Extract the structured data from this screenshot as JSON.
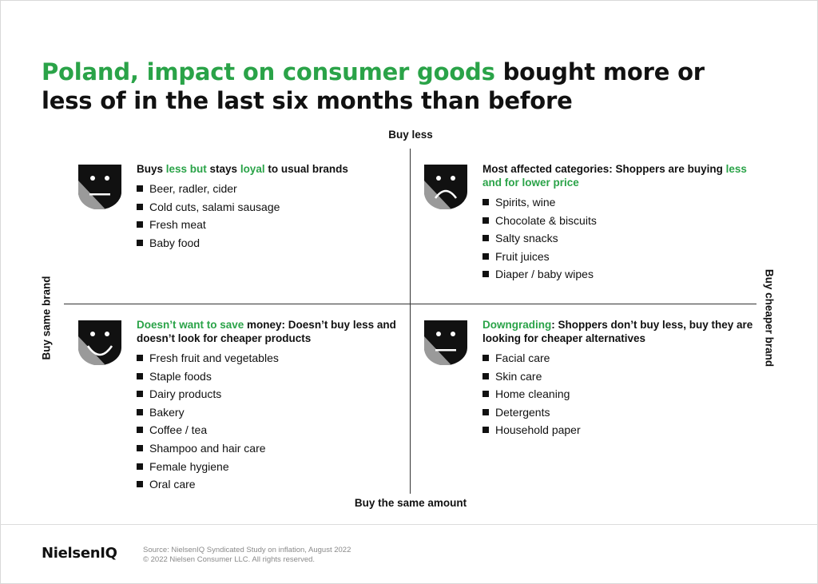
{
  "title": {
    "green": "Poland, impact on consumer goods",
    "rest": " bought more or less of in the last six months than before"
  },
  "axes": {
    "top": "Buy less",
    "bottom": "Buy the same amount",
    "left": "Buy same brand",
    "right": "Buy cheaper brand"
  },
  "quadrants": {
    "top_left": {
      "face": "neutral-face-icon",
      "heading": [
        {
          "text": "Buys ",
          "green": false
        },
        {
          "text": "less but",
          "green": true
        },
        {
          "text": " stays ",
          "green": false
        },
        {
          "text": "loyal",
          "green": true
        },
        {
          "text": " to usual brands",
          "green": false
        }
      ],
      "items": [
        "Beer, radler, cider",
        "Cold cuts, salami sausage",
        "Fresh meat",
        "Baby food"
      ]
    },
    "top_right": {
      "face": "sad-face-icon",
      "heading": [
        {
          "text": "Most affected categories: Shoppers are buying ",
          "green": false
        },
        {
          "text": "less and for lower price",
          "green": true
        }
      ],
      "items": [
        "Spirits, wine",
        "Chocolate & biscuits",
        "Salty snacks",
        "Fruit juices",
        "Diaper / baby wipes"
      ]
    },
    "bottom_left": {
      "face": "happy-face-icon",
      "heading": [
        {
          "text": "Doesn’t want to save",
          "green": true
        },
        {
          "text": " money: Doesn’t buy less and doesn’t look for cheaper products",
          "green": false
        }
      ],
      "items": [
        "Fresh fruit and vegetables",
        "Staple foods",
        "Dairy products",
        "Bakery",
        "Coffee / tea",
        "Shampoo and hair care",
        "Female hygiene",
        "Oral care"
      ]
    },
    "bottom_right": {
      "face": "neutral-face-icon",
      "heading": [
        {
          "text": "Downgrading",
          "green": true
        },
        {
          "text": ": Shoppers don’t buy less, buy they are looking for cheaper alternatives",
          "green": false
        }
      ],
      "items": [
        "Facial care",
        "Skin care",
        "Home cleaning",
        "Detergents",
        "Household paper"
      ]
    }
  },
  "footer": {
    "logo": "NielsenIQ",
    "source_line1": "Source: NielsenIQ Syndicated Study on inflation, August 2022",
    "source_line2": "© 2022 Nielsen Consumer LLC. All rights reserved."
  },
  "colors": {
    "accent_green": "#2aa348",
    "face_dark": "#111111",
    "face_gray": "#9a9a9a"
  }
}
